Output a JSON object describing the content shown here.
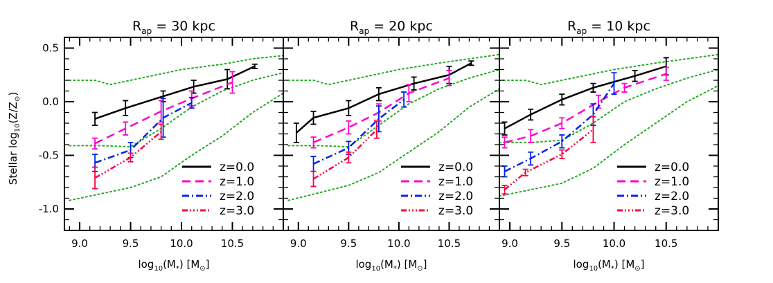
{
  "chart_data": {
    "type": "line",
    "ylabel_parts": {
      "pre": "Stellar log",
      "sub": "10",
      "mid": "(Z/Z",
      "sun": "⊙",
      "post": ")"
    },
    "xlabel_parts": {
      "pre": "log",
      "sub": "10",
      "mid": "(M",
      "star": "*",
      "post1": ") [M",
      "sun": "⊙",
      "post2": "]"
    },
    "ylim": [
      -1.2,
      0.6
    ],
    "yticks": [
      0.5,
      0.0,
      -0.5,
      -1.0
    ],
    "ytick_labels": [
      "0.5",
      "0.0",
      "-0.5",
      "-1.0"
    ],
    "legend_placement": "bottom-right",
    "series_styles": [
      {
        "label": "z=0.0",
        "color": "#000000",
        "dash": ""
      },
      {
        "label": "z=1.0",
        "color": "#ff00cc",
        "dash": "12,7"
      },
      {
        "label": "z=2.0",
        "color": "#0022ee",
        "dash": "10,4,2,4"
      },
      {
        "label": "z=3.0",
        "color": "#ff0044",
        "dash": "8,3,2,3,2,3,2,3"
      }
    ],
    "envelope_color": "#22aa22",
    "panels": [
      {
        "title_pre": "R",
        "title_sub": "ap",
        "title_post": " = 30 kpc",
        "xlim": [
          8.85,
          11.0
        ],
        "xticks": [
          9.0,
          9.5,
          10.0,
          10.5
        ],
        "xtick_labels": [
          "9.0",
          "9.5",
          "10.0",
          "10.5"
        ],
        "envelopes": [
          {
            "x": [
              8.9,
              9.15,
              9.3,
              9.6,
              10.0,
              10.4,
              10.7,
              11.0
            ],
            "y": [
              0.2,
              0.2,
              0.16,
              0.22,
              0.3,
              0.35,
              0.4,
              0.43
            ]
          },
          {
            "x": [
              8.9,
              9.2,
              9.5,
              9.8,
              10.1,
              10.4,
              10.7,
              11.0
            ],
            "y": [
              -0.41,
              -0.41,
              -0.42,
              -0.25,
              -0.05,
              0.1,
              0.2,
              0.27
            ]
          },
          {
            "x": [
              8.9,
              9.2,
              9.5,
              9.8,
              10.1,
              10.4,
              10.7,
              11.0
            ],
            "y": [
              -0.92,
              -0.86,
              -0.8,
              -0.7,
              -0.5,
              -0.32,
              -0.1,
              0.08
            ]
          }
        ],
        "series": [
          {
            "x": [
              9.15,
              9.45,
              9.82,
              10.12,
              10.45,
              10.72
            ],
            "y": [
              -0.16,
              -0.06,
              0.05,
              0.14,
              0.21,
              0.33
            ],
            "err": [
              0.06,
              0.07,
              0.05,
              0.06,
              0.09,
              0.02
            ]
          },
          {
            "x": [
              9.15,
              9.45,
              9.8,
              10.1,
              10.5
            ],
            "y": [
              -0.39,
              -0.25,
              -0.09,
              0.03,
              0.18
            ],
            "err": [
              0.05,
              0.06,
              0.1,
              0.07,
              0.1
            ]
          },
          {
            "x": [
              9.15,
              9.5,
              9.82,
              10.1
            ],
            "y": [
              -0.57,
              -0.45,
              -0.15,
              -0.01
            ],
            "err": [
              0.08,
              0.07,
              0.18,
              0.05
            ]
          },
          {
            "x": [
              9.15,
              9.5,
              9.8
            ],
            "y": [
              -0.71,
              -0.52,
              -0.28
            ],
            "err": [
              0.1,
              0.04,
              0.07
            ]
          }
        ]
      },
      {
        "title_pre": "R",
        "title_sub": "ap",
        "title_post": " = 20 kpc",
        "xlim": [
          8.85,
          11.0
        ],
        "xticks": [
          9.0,
          9.5,
          10.0,
          10.5
        ],
        "xtick_labels": [
          "9.0",
          "9.5",
          "10.0",
          "10.5"
        ],
        "envelopes": [
          {
            "x": [
              8.9,
              9.15,
              9.3,
              9.6,
              10.0,
              10.4,
              10.7,
              11.0
            ],
            "y": [
              0.2,
              0.2,
              0.16,
              0.22,
              0.3,
              0.36,
              0.4,
              0.44
            ]
          },
          {
            "x": [
              8.9,
              9.2,
              9.5,
              9.8,
              10.1,
              10.4,
              10.7,
              11.0
            ],
            "y": [
              -0.41,
              -0.41,
              -0.42,
              -0.22,
              -0.02,
              0.12,
              0.22,
              0.3
            ]
          },
          {
            "x": [
              8.9,
              9.2,
              9.5,
              9.8,
              10.1,
              10.4,
              10.7,
              11.0
            ],
            "y": [
              -0.92,
              -0.85,
              -0.78,
              -0.66,
              -0.47,
              -0.28,
              -0.05,
              0.12
            ]
          }
        ],
        "series": [
          {
            "x": [
              8.98,
              9.15,
              9.5,
              9.8,
              10.15,
              10.5,
              10.72
            ],
            "y": [
              -0.29,
              -0.15,
              -0.06,
              0.07,
              0.17,
              0.25,
              0.36
            ],
            "err": [
              0.09,
              0.06,
              0.07,
              0.06,
              0.06,
              0.08,
              0.02
            ]
          },
          {
            "x": [
              9.15,
              9.5,
              9.8,
              10.1,
              10.5
            ],
            "y": [
              -0.38,
              -0.24,
              -0.1,
              0.08,
              0.22
            ],
            "err": [
              0.05,
              0.06,
              0.08,
              0.08,
              0.07
            ]
          },
          {
            "x": [
              9.15,
              9.5,
              9.8,
              10.05
            ],
            "y": [
              -0.58,
              -0.43,
              -0.16,
              0.02
            ],
            "err": [
              0.07,
              0.06,
              0.12,
              0.07
            ]
          },
          {
            "x": [
              9.15,
              9.5,
              9.78
            ],
            "y": [
              -0.72,
              -0.52,
              -0.26
            ],
            "err": [
              0.07,
              0.05,
              0.08
            ]
          }
        ]
      },
      {
        "title_pre": "R",
        "title_sub": "ap",
        "title_post": " = 10 kpc",
        "xlim": [
          8.9,
          11.0
        ],
        "xticks": [
          9.0,
          9.5,
          10.0,
          10.5
        ],
        "xtick_labels": [
          "9.0",
          "9.5",
          "10.0",
          "10.5"
        ],
        "envelopes": [
          {
            "x": [
              8.9,
              9.15,
              9.3,
              9.6,
              10.0,
              10.4,
              10.7,
              11.0
            ],
            "y": [
              0.2,
              0.2,
              0.16,
              0.22,
              0.3,
              0.36,
              0.4,
              0.44
            ]
          },
          {
            "x": [
              8.9,
              9.2,
              9.5,
              9.8,
              10.1,
              10.4,
              10.7,
              11.0
            ],
            "y": [
              -0.38,
              -0.38,
              -0.36,
              -0.2,
              0.0,
              0.12,
              0.22,
              0.3
            ]
          },
          {
            "x": [
              8.9,
              9.2,
              9.5,
              9.8,
              10.1,
              10.4,
              10.7,
              11.0
            ],
            "y": [
              -0.88,
              -0.82,
              -0.76,
              -0.62,
              -0.4,
              -0.2,
              0.0,
              0.15
            ]
          }
        ],
        "series": [
          {
            "x": [
              8.95,
              9.2,
              9.5,
              9.8,
              10.2,
              10.5
            ],
            "y": [
              -0.25,
              -0.12,
              0.02,
              0.13,
              0.24,
              0.33
            ],
            "err": [
              0.06,
              0.05,
              0.05,
              0.04,
              0.05,
              0.08
            ]
          },
          {
            "x": [
              8.95,
              9.2,
              9.5,
              9.85,
              10.1,
              10.5
            ],
            "y": [
              -0.38,
              -0.32,
              -0.2,
              0.0,
              0.13,
              0.26
            ],
            "err": [
              0.05,
              0.06,
              0.05,
              0.06,
              0.04,
              0.06
            ]
          },
          {
            "x": [
              8.95,
              9.2,
              9.5,
              9.8,
              10.0
            ],
            "y": [
              -0.65,
              -0.53,
              -0.37,
              -0.12,
              0.17
            ],
            "err": [
              0.05,
              0.06,
              0.06,
              0.1,
              0.1
            ]
          },
          {
            "x": [
              8.95,
              9.15,
              9.5,
              9.8
            ],
            "y": [
              -0.82,
              -0.66,
              -0.49,
              -0.26
            ],
            "err": [
              0.04,
              0.03,
              0.04,
              0.12
            ]
          }
        ]
      }
    ]
  }
}
